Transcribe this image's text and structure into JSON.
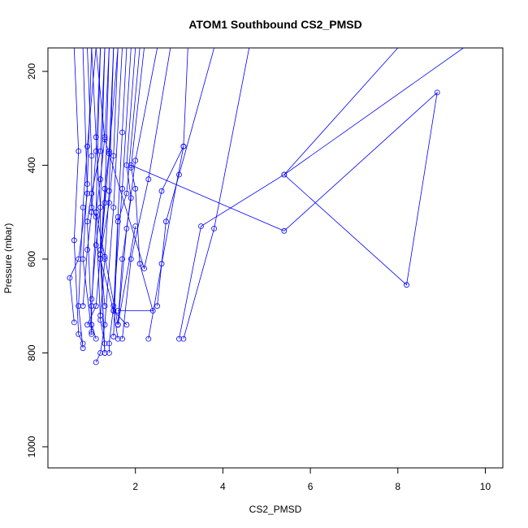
{
  "chart_data": {
    "type": "line",
    "title": "ATOM1 Southbound CS2_PMSD",
    "xlabel": "CS2_PMSD",
    "ylabel": "Pressure (mbar)",
    "xlim": [
      0.0,
      10.4
    ],
    "ylim": [
      1045,
      150
    ],
    "y_reversed": true,
    "x_ticks": [
      2,
      4,
      6,
      8,
      10
    ],
    "y_ticks": [
      200,
      400,
      600,
      800,
      1000
    ],
    "grid": false,
    "legend": "none",
    "series_color": "#0000ff",
    "marker": "open-circle",
    "profiles": [
      {
        "name": "",
        "x": [
          0.9,
          1.0,
          1.0,
          1.1,
          1.0,
          1.0
        ],
        "y": [
          150,
          380,
          490,
          510,
          700,
          760
        ]
      },
      {
        "name": "",
        "x": [
          1.0,
          1.1,
          1.2,
          1.2,
          1.3
        ],
        "y": [
          150,
          340,
          490,
          580,
          800
        ]
      },
      {
        "name": "",
        "x": [
          1.1,
          0.9,
          0.8,
          0.7,
          0.8
        ],
        "y": [
          150,
          360,
          490,
          700,
          790
        ]
      },
      {
        "name": "",
        "x": [
          1.3,
          1.2,
          1.0,
          0.9,
          1.0,
          1.1
        ],
        "y": [
          150,
          370,
          460,
          520,
          740,
          770
        ]
      },
      {
        "name": "",
        "x": [
          1.4,
          1.3,
          1.2,
          1.1,
          1.2,
          1.3
        ],
        "y": [
          150,
          340,
          430,
          500,
          730,
          780
        ]
      },
      {
        "name": "",
        "x": [
          1.5,
          1.4,
          1.3,
          1.2,
          1.3
        ],
        "y": [
          150,
          370,
          450,
          590,
          700
        ]
      },
      {
        "name": "",
        "x": [
          1.6,
          1.5,
          1.4,
          1.2,
          1.3
        ],
        "y": [
          150,
          380,
          480,
          590,
          800
        ]
      },
      {
        "name": "",
        "x": [
          1.8,
          1.7,
          1.6,
          1.5,
          1.6
        ],
        "y": [
          150,
          330,
          510,
          710,
          770
        ]
      },
      {
        "name": "",
        "x": [
          2.0,
          1.8,
          1.9,
          1.7,
          1.6
        ],
        "y": [
          150,
          400,
          470,
          600,
          740
        ]
      },
      {
        "name": "",
        "x": [
          2.2,
          1.9,
          2.0,
          2.1,
          2.4,
          1.6
        ],
        "y": [
          150,
          405,
          450,
          610,
          710,
          710
        ]
      },
      {
        "name": "",
        "x": [
          2.5,
          2.0,
          1.8,
          1.6
        ],
        "y": [
          150,
          390,
          535,
          740
        ]
      },
      {
        "name": "",
        "x": [
          2.8,
          2.3,
          1.9,
          1.7
        ],
        "y": [
          150,
          430,
          600,
          770
        ]
      },
      {
        "name": "",
        "x": [
          3.2,
          3.1,
          2.6,
          2.3
        ],
        "y": [
          150,
          360,
          610,
          770
        ]
      },
      {
        "name": "",
        "x": [
          3.8,
          3.0,
          2.7,
          2.5
        ],
        "y": [
          150,
          420,
          520,
          700
        ]
      },
      {
        "name": "",
        "x": [
          4.6,
          3.8,
          3.1
        ],
        "y": [
          150,
          535,
          770
        ]
      },
      {
        "name": "",
        "x": [
          0.6,
          0.7,
          0.6,
          0.7,
          0.8
        ],
        "y": [
          150,
          370,
          560,
          760,
          780
        ]
      },
      {
        "name": "",
        "x": [
          0.8,
          0.9,
          0.7,
          0.5,
          0.6
        ],
        "y": [
          150,
          460,
          600,
          640,
          735
        ]
      },
      {
        "name": "",
        "x": [
          1.2,
          1.1,
          1.0,
          0.9,
          0.8
        ],
        "y": [
          150,
          370,
          500,
          580,
          700
        ]
      },
      {
        "name": "",
        "x": [
          1.7,
          1.5,
          1.3,
          1.2,
          1.1
        ],
        "y": [
          150,
          490,
          740,
          800,
          820
        ]
      },
      {
        "name": "",
        "x": [
          1.9,
          1.7,
          1.5,
          1.4,
          1.4
        ],
        "y": [
          150,
          450,
          700,
          780,
          800
        ]
      },
      {
        "name": "",
        "x": [
          1.4,
          1.3,
          1.1,
          0.9
        ],
        "y": [
          150,
          480,
          700,
          740
        ]
      },
      {
        "name": "",
        "x": [
          1.2,
          1.1,
          1.3,
          1.6,
          2.0
        ],
        "y": [
          150,
          500,
          595,
          740,
          530
        ]
      },
      {
        "name": "",
        "x": [
          1.1,
          1.3,
          2.2,
          2.6,
          3.1
        ],
        "y": [
          150,
          345,
          620,
          455,
          360
        ]
      },
      {
        "name": "",
        "x": [
          1.6,
          1.4,
          1.2,
          1.5,
          1.8
        ],
        "y": [
          150,
          375,
          600,
          710,
          740
        ]
      },
      {
        "name": "",
        "x": [
          9.5,
          5.4,
          8.2,
          8.9,
          5.4,
          1.9
        ],
        "y": [
          150,
          420,
          655,
          245,
          540,
          400
        ]
      },
      {
        "name": "",
        "x": [
          8.0,
          5.4,
          3.5,
          3.0
        ],
        "y": [
          150,
          420,
          530,
          770
        ]
      },
      {
        "name": "",
        "x": [
          1.0,
          0.9,
          0.8,
          1.0
        ],
        "y": [
          150,
          440,
          600,
          755
        ]
      },
      {
        "name": "",
        "x": [
          1.3,
          1.2,
          1.1,
          1.0
        ],
        "y": [
          150,
          490,
          570,
          685
        ]
      },
      {
        "name": "",
        "x": [
          2.1,
          1.8,
          1.6,
          1.5
        ],
        "y": [
          150,
          460,
          520,
          765
        ]
      },
      {
        "name": "",
        "x": [
          1.5,
          1.4,
          1.3,
          1.2
        ],
        "y": [
          150,
          455,
          600,
          720
        ]
      }
    ]
  }
}
